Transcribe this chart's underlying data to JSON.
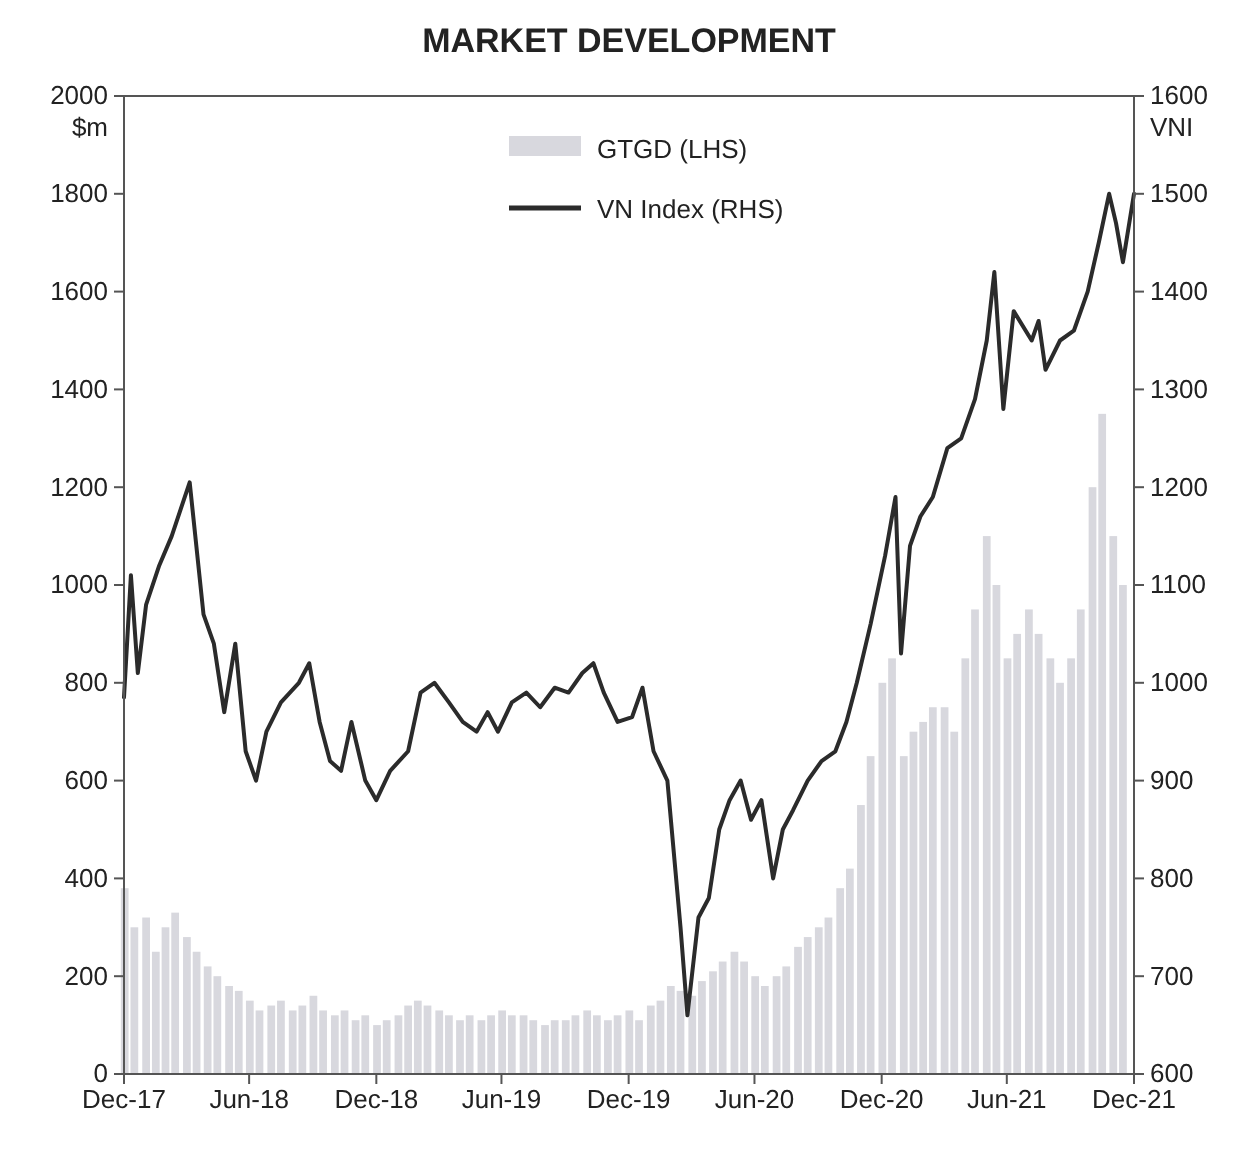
{
  "chart_data": {
    "type": "bar",
    "title": "MARKET DEVELOPMENT",
    "ylabel": "$m",
    "y2label": "VNI",
    "legend": "top",
    "xlim": [
      "2017-12-31",
      "2021-12-31"
    ],
    "xticks": [
      {
        "value": "2017-12-31",
        "label": "Dec-17"
      },
      {
        "value": "2018-06-30",
        "label": "Jun-18"
      },
      {
        "value": "2018-12-31",
        "label": "Dec-18"
      },
      {
        "value": "2019-06-30",
        "label": "Jun-19"
      },
      {
        "value": "2019-12-31",
        "label": "Dec-19"
      },
      {
        "value": "2020-06-30",
        "label": "Jun-20"
      },
      {
        "value": "2020-12-31",
        "label": "Dec-20"
      },
      {
        "value": "2021-06-30",
        "label": "Jun-21"
      },
      {
        "value": "2021-12-31",
        "label": "Dec-21"
      }
    ],
    "ylim": [
      0,
      2000
    ],
    "yticks": [
      0,
      200,
      400,
      600,
      800,
      1000,
      1200,
      1400,
      1600,
      1800,
      2000
    ],
    "y2lim": [
      600,
      1600
    ],
    "y2ticks": [
      600,
      700,
      800,
      900,
      1000,
      1100,
      1200,
      1300,
      1400,
      1500,
      1600
    ],
    "series": [
      {
        "name": "GTGD (LHS)",
        "color": "#d8d8de",
        "x": [
          "2018-01-01",
          "2018-01-15",
          "2018-02-01",
          "2018-02-15",
          "2018-03-01",
          "2018-03-15",
          "2018-04-01",
          "2018-04-15",
          "2018-05-01",
          "2018-05-15",
          "2018-06-01",
          "2018-06-15",
          "2018-07-01",
          "2018-07-15",
          "2018-08-01",
          "2018-08-15",
          "2018-09-01",
          "2018-09-15",
          "2018-10-01",
          "2018-10-15",
          "2018-11-01",
          "2018-11-15",
          "2018-12-01",
          "2018-12-15",
          "2019-01-01",
          "2019-01-15",
          "2019-02-01",
          "2019-02-15",
          "2019-03-01",
          "2019-03-15",
          "2019-04-01",
          "2019-04-15",
          "2019-05-01",
          "2019-05-15",
          "2019-06-01",
          "2019-06-15",
          "2019-07-01",
          "2019-07-15",
          "2019-08-01",
          "2019-08-15",
          "2019-09-01",
          "2019-09-15",
          "2019-10-01",
          "2019-10-15",
          "2019-11-01",
          "2019-11-15",
          "2019-12-01",
          "2019-12-15",
          "2020-01-01",
          "2020-01-15",
          "2020-02-01",
          "2020-02-15",
          "2020-03-01",
          "2020-03-15",
          "2020-04-01",
          "2020-04-15",
          "2020-05-01",
          "2020-05-15",
          "2020-06-01",
          "2020-06-15",
          "2020-07-01",
          "2020-07-15",
          "2020-08-01",
          "2020-08-15",
          "2020-09-01",
          "2020-09-15",
          "2020-10-01",
          "2020-10-15",
          "2020-11-01",
          "2020-11-15",
          "2020-12-01",
          "2020-12-15",
          "2021-01-01",
          "2021-01-15",
          "2021-02-01",
          "2021-02-15",
          "2021-03-01",
          "2021-03-15",
          "2021-04-01",
          "2021-04-15",
          "2021-05-01",
          "2021-05-15",
          "2021-06-01",
          "2021-06-15",
          "2021-07-01",
          "2021-07-15",
          "2021-08-01",
          "2021-08-15",
          "2021-09-01",
          "2021-09-15",
          "2021-10-01",
          "2021-10-15",
          "2021-11-01",
          "2021-11-15",
          "2021-12-01",
          "2021-12-15"
        ],
        "values": [
          380,
          300,
          320,
          250,
          300,
          330,
          280,
          250,
          220,
          200,
          180,
          170,
          150,
          130,
          140,
          150,
          130,
          140,
          160,
          130,
          120,
          130,
          110,
          120,
          100,
          110,
          120,
          140,
          150,
          140,
          130,
          120,
          110,
          120,
          110,
          120,
          130,
          120,
          120,
          110,
          100,
          110,
          110,
          120,
          130,
          120,
          110,
          120,
          130,
          110,
          140,
          150,
          180,
          170,
          160,
          190,
          210,
          230,
          250,
          230,
          200,
          180,
          200,
          220,
          260,
          280,
          300,
          320,
          380,
          420,
          550,
          650,
          800,
          850,
          650,
          700,
          720,
          750,
          750,
          700,
          850,
          950,
          1100,
          1000,
          850,
          900,
          950,
          900,
          850,
          800,
          850,
          950,
          1200,
          1350,
          1100,
          1000
        ]
      },
      {
        "name": "VN Index (RHS)",
        "type": "line",
        "axis": "y2",
        "color": "#2b2b2b",
        "x": [
          "2017-12-31",
          "2018-01-10",
          "2018-01-20",
          "2018-02-01",
          "2018-02-20",
          "2018-03-10",
          "2018-04-05",
          "2018-04-25",
          "2018-05-10",
          "2018-05-25",
          "2018-06-10",
          "2018-06-25",
          "2018-07-10",
          "2018-07-25",
          "2018-08-15",
          "2018-09-10",
          "2018-09-25",
          "2018-10-10",
          "2018-10-25",
          "2018-11-10",
          "2018-11-25",
          "2018-12-15",
          "2018-12-31",
          "2019-01-20",
          "2019-02-15",
          "2019-03-05",
          "2019-03-25",
          "2019-04-15",
          "2019-05-05",
          "2019-05-25",
          "2019-06-10",
          "2019-06-25",
          "2019-07-15",
          "2019-08-05",
          "2019-08-25",
          "2019-09-15",
          "2019-10-05",
          "2019-10-25",
          "2019-11-10",
          "2019-11-25",
          "2019-12-15",
          "2020-01-05",
          "2020-01-20",
          "2020-02-05",
          "2020-02-25",
          "2020-03-15",
          "2020-03-25",
          "2020-04-10",
          "2020-04-25",
          "2020-05-10",
          "2020-05-25",
          "2020-06-10",
          "2020-06-25",
          "2020-07-10",
          "2020-07-27",
          "2020-08-10",
          "2020-08-25",
          "2020-09-15",
          "2020-10-05",
          "2020-10-25",
          "2020-11-10",
          "2020-11-25",
          "2020-12-15",
          "2021-01-05",
          "2021-01-20",
          "2021-01-28",
          "2021-02-10",
          "2021-02-25",
          "2021-03-15",
          "2021-04-05",
          "2021-04-25",
          "2021-05-15",
          "2021-06-01",
          "2021-06-12",
          "2021-06-25",
          "2021-07-10",
          "2021-08-05",
          "2021-08-15",
          "2021-08-25",
          "2021-09-15",
          "2021-10-05",
          "2021-10-25",
          "2021-11-10",
          "2021-11-25",
          "2021-12-05",
          "2021-12-15",
          "2021-12-31"
        ],
        "values": [
          985,
          1110,
          1010,
          1080,
          1120,
          1150,
          1205,
          1070,
          1040,
          970,
          1040,
          930,
          900,
          950,
          980,
          1000,
          1020,
          960,
          920,
          910,
          960,
          900,
          880,
          910,
          930,
          990,
          1000,
          980,
          960,
          950,
          970,
          950,
          980,
          990,
          975,
          995,
          990,
          1010,
          1020,
          990,
          960,
          965,
          995,
          930,
          900,
          750,
          660,
          760,
          780,
          850,
          880,
          900,
          860,
          880,
          800,
          850,
          870,
          900,
          920,
          930,
          960,
          1000,
          1060,
          1130,
          1190,
          1030,
          1140,
          1170,
          1190,
          1240,
          1250,
          1290,
          1350,
          1420,
          1280,
          1380,
          1350,
          1370,
          1320,
          1350,
          1360,
          1400,
          1450,
          1500,
          1470,
          1430,
          1500
        ]
      }
    ]
  }
}
